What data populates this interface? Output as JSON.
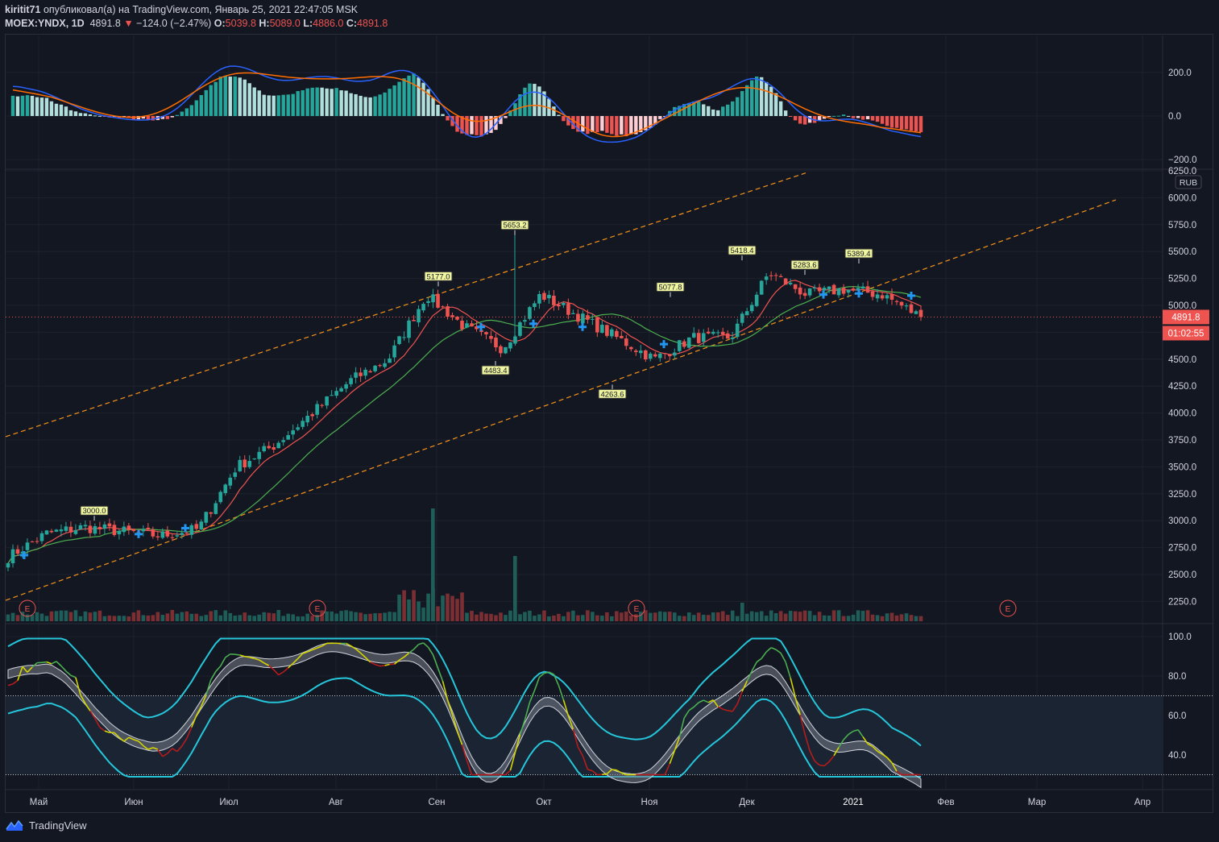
{
  "header": {
    "author": "kiritit71",
    "published_text": "опубликовал(а) на TradingView.com, Январь 25, 2021 22:47:05 MSK",
    "symbol": "MOEX:YNDX, 1D",
    "last": "4891.8",
    "change": "−124.0 (−2.47%)",
    "open_label": "O:",
    "open": "5039.8",
    "high_label": "H:",
    "high": "5089.0",
    "low_label": "L:",
    "low": "4886.0",
    "close_label": "C:",
    "close": "4891.8"
  },
  "footer": {
    "brand": "TradingView"
  },
  "colors": {
    "up": "#26a69a",
    "down": "#ef5350",
    "bg": "#131722",
    "grid": "#1e222d",
    "channel": "#f7931a"
  },
  "price_axis": {
    "currency": "RUB",
    "last_price": "4891.8",
    "countdown": "01:02:55"
  },
  "macd_axis": [
    "200.0",
    "0.0",
    "−200.0"
  ],
  "rsi_axis": [
    "100.0",
    "80.0",
    "60.0",
    "40.0"
  ],
  "x_axis": [
    "Май",
    "Июн",
    "Июл",
    "Авг",
    "Сен",
    "Окт",
    "Ноя",
    "Дек",
    "2021",
    "Фев",
    "Мар",
    "Апр"
  ],
  "earnings_marker": "E",
  "chart_data": {
    "type": "candlestick",
    "symbol": "MOEX:YNDX",
    "interval": "1D",
    "price_ticks": [
      "6250.0",
      "6000.0",
      "5750.0",
      "5500.0",
      "5250.0",
      "5000.0",
      "4750.0",
      "4500.0",
      "4250.0",
      "4000.0",
      "3750.0",
      "3500.0",
      "3250.0",
      "3000.0",
      "2750.0",
      "2500.0",
      "2250.0"
    ],
    "ylim": [
      2150,
      6250
    ],
    "price_path": [
      [
        "Май",
        2660
      ],
      [
        "Май",
        2880
      ],
      [
        "Май",
        2940
      ],
      [
        "Июн",
        2900
      ],
      [
        "Июн",
        2860
      ],
      [
        "Июн",
        2920
      ],
      [
        "Июл",
        3500
      ],
      [
        "Июл",
        3700
      ],
      [
        "Июл",
        4000
      ],
      [
        "Авг",
        4300
      ],
      [
        "Авг",
        4500
      ],
      [
        "Сен",
        5100
      ],
      [
        "Сен",
        4800
      ],
      [
        "Сен",
        4600
      ],
      [
        "Окт",
        5100
      ],
      [
        "Окт",
        4900
      ],
      [
        "Окт",
        4700
      ],
      [
        "Ноя",
        4500
      ],
      [
        "Ноя",
        4700
      ],
      [
        "Ноя",
        4700
      ],
      [
        "Дек",
        5300
      ],
      [
        "Дек",
        5100
      ],
      [
        "2021",
        5150
      ],
      [
        "2021",
        5100
      ],
      [
        "2021",
        4891.8
      ]
    ],
    "labeled_extremes": [
      {
        "label": "3000.0",
        "month": "Май",
        "value": 3000.0
      },
      {
        "label": "5177.0",
        "month": "Сен",
        "value": 5177.0
      },
      {
        "label": "5653.2",
        "month": "Сен",
        "value": 5653.2
      },
      {
        "label": "4483.4",
        "month": "Сен",
        "value": 4483.4
      },
      {
        "label": "5077.8",
        "month": "Ноя",
        "value": 5077.8
      },
      {
        "label": "4263.6",
        "month": "Окт",
        "value": 4263.6
      },
      {
        "label": "5418.4",
        "month": "Ноя",
        "value": 5418.4
      },
      {
        "label": "5283.6",
        "month": "Дек",
        "value": 5283.6
      },
      {
        "label": "5389.4",
        "month": "2021",
        "value": 5389.4
      }
    ],
    "macd_ylim": [
      -230,
      300
    ],
    "rsi_ylim": [
      27,
      105
    ],
    "rsi_levels": [
      70,
      30
    ],
    "legend": "none",
    "grid": true
  }
}
